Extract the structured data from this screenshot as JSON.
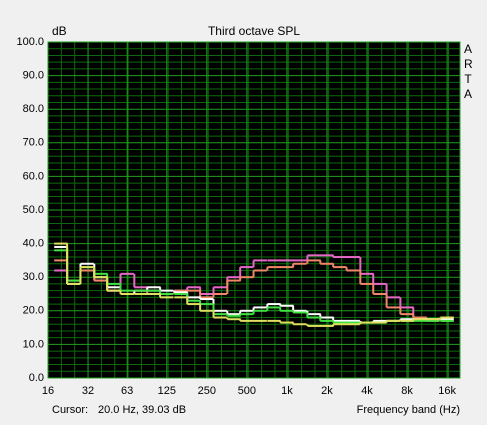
{
  "chart_data": {
    "type": "step",
    "title": "Third octave SPL",
    "y_label": "dB",
    "x_label": "Frequency band (Hz)",
    "watermark": "ARTA",
    "cursor": {
      "label": "Cursor:",
      "readout": "20.0 Hz, 39.03 dB"
    },
    "log_x": true,
    "grid": true,
    "x_minor_per_octave": 3,
    "y_minor_per_major": 5,
    "x": [
      20,
      25,
      31.5,
      40,
      50,
      63,
      80,
      100,
      125,
      160,
      200,
      250,
      315,
      400,
      500,
      630,
      800,
      1000,
      1250,
      1600,
      2000,
      2500,
      3150,
      4000,
      5000,
      6300,
      8000,
      10000,
      12500,
      16000
    ],
    "series": [
      {
        "color": "#e868c8",
        "values": [
          32,
          29,
          32,
          29,
          26,
          31,
          27,
          26,
          25,
          26,
          27,
          25,
          27,
          30,
          33,
          35,
          35,
          35,
          35,
          36.5,
          36.5,
          36,
          36,
          31,
          28,
          24,
          21,
          18,
          17,
          18
        ]
      },
      {
        "color": "#f08868",
        "values": [
          35,
          29,
          32,
          29,
          26,
          25,
          26,
          25,
          25,
          26,
          26,
          24,
          25,
          29,
          30,
          32,
          33,
          33,
          34,
          35,
          34,
          33,
          32,
          28,
          25,
          21,
          19,
          18,
          17.5,
          17
        ]
      },
      {
        "color": "#ffffff",
        "values": [
          39,
          28,
          34,
          30,
          27,
          25,
          26,
          27,
          26,
          25.5,
          24,
          23.5,
          20,
          19,
          20,
          21,
          22,
          21.5,
          20,
          19,
          18,
          17,
          17,
          16.5,
          17,
          17,
          17.5,
          17.5,
          17.5,
          17.5
        ]
      },
      {
        "color": "#40e040",
        "values": [
          38,
          29,
          33,
          31,
          28,
          26,
          26,
          26,
          25,
          25,
          23,
          22,
          19,
          18.5,
          19,
          20,
          21,
          20,
          19.5,
          18,
          17,
          16.5,
          16.5,
          16.5,
          16.5,
          17,
          17,
          17,
          17,
          17
        ]
      },
      {
        "color": "#e0e060",
        "values": [
          40,
          28,
          33,
          30,
          26,
          25,
          25,
          25,
          24,
          24,
          22,
          20,
          18,
          17.5,
          17,
          17,
          17,
          16.5,
          16,
          15.5,
          15.5,
          16,
          16,
          16.5,
          16.5,
          17,
          17,
          17.5,
          17.5,
          18
        ]
      }
    ],
    "xlim": [
      16,
      20000
    ],
    "xticks": [
      16,
      32,
      63,
      125,
      250,
      500,
      {
        "value": 1000,
        "label": "1k"
      },
      {
        "value": 2000,
        "label": "2k"
      },
      {
        "value": 4000,
        "label": "4k"
      },
      {
        "value": 8000,
        "label": "8k"
      },
      {
        "value": 16000,
        "label": "16k"
      }
    ],
    "ylim": [
      0,
      100
    ],
    "yticks": [
      {
        "value": 0,
        "label": "0.0"
      },
      {
        "value": 10,
        "label": "10.0"
      },
      {
        "value": 20,
        "label": "20.0"
      },
      {
        "value": 30,
        "label": "30.0"
      },
      {
        "value": 40,
        "label": "40.0"
      },
      {
        "value": 50,
        "label": "50.0"
      },
      {
        "value": 60,
        "label": "60.0"
      },
      {
        "value": 70,
        "label": "70.0"
      },
      {
        "value": 80,
        "label": "80.0"
      },
      {
        "value": 90,
        "label": "90.0"
      },
      {
        "value": 100,
        "label": "100.0"
      }
    ]
  }
}
